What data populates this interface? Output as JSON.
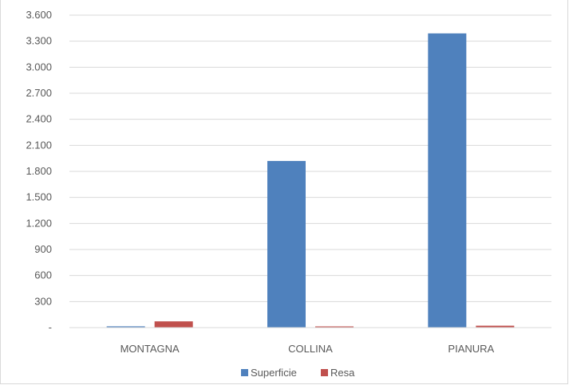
{
  "chart_data": {
    "type": "bar",
    "categories": [
      "MONTAGNA",
      "COLLINA",
      "PIANURA"
    ],
    "series": [
      {
        "name": "Superficie",
        "values": [
          15,
          1920,
          3390
        ],
        "color": "#4f81bd"
      },
      {
        "name": "Resa",
        "values": [
          72,
          14,
          22
        ],
        "color": "#c0504d"
      }
    ],
    "ylim": [
      0,
      3600
    ],
    "yticks": [
      0,
      300,
      600,
      900,
      1200,
      1500,
      1800,
      2100,
      2400,
      2700,
      3000,
      3300,
      3600
    ],
    "ytick_labels": [
      "-",
      "300",
      "600",
      "900",
      "1.200",
      "1.500",
      "1.800",
      "2.100",
      "2.400",
      "2.700",
      "3.000",
      "3.300",
      "3.600"
    ],
    "grid": true,
    "legend_position": "bottom",
    "gridline_color": "#d9d9d9"
  }
}
